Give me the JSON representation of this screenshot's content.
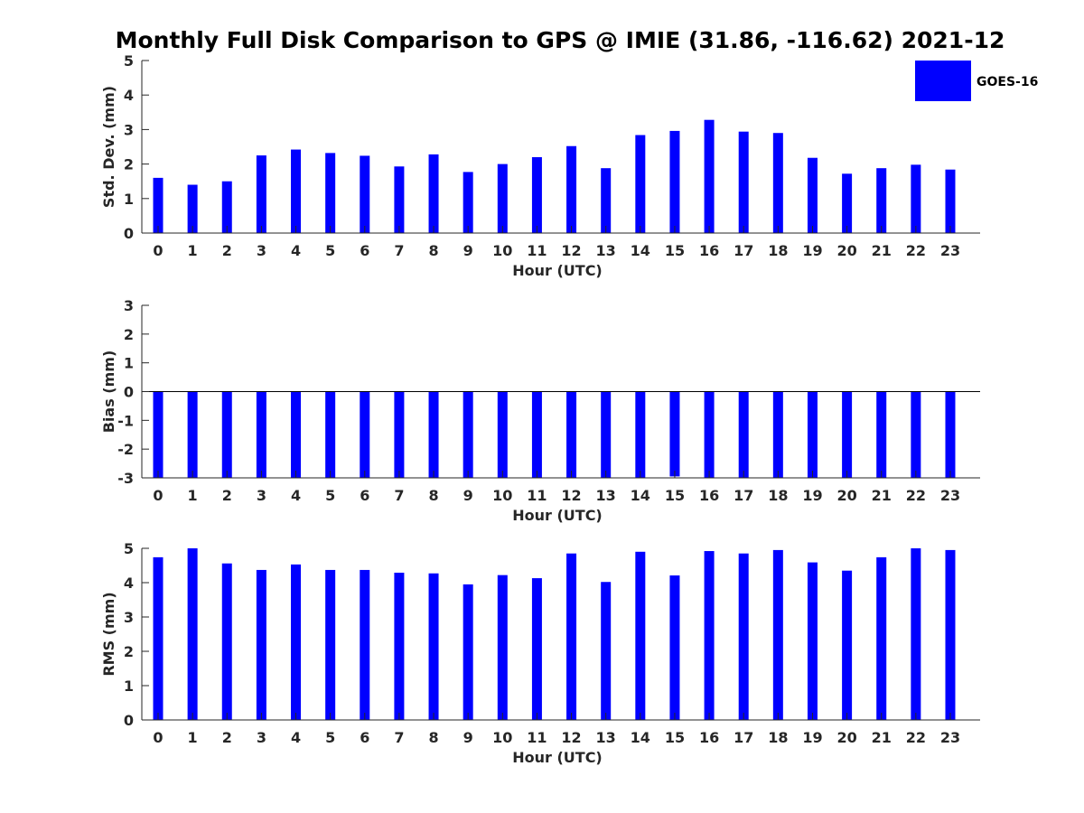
{
  "colors": {
    "bar": "#0000ff",
    "axis": "#262626"
  },
  "chart_data": [
    {
      "type": "bar",
      "title": "Monthly Full Disk Comparison to GPS @ IMIE (31.86, -116.62) 2021-12",
      "xlabel": "Hour (UTC)",
      "ylabel": "Std. Dev. (mm)",
      "ylim": [
        0,
        5
      ],
      "yticks": [
        "0",
        "1",
        "2",
        "3",
        "4",
        "5"
      ],
      "categories": [
        "0",
        "1",
        "2",
        "3",
        "4",
        "5",
        "6",
        "7",
        "8",
        "9",
        "10",
        "11",
        "12",
        "13",
        "14",
        "15",
        "16",
        "17",
        "18",
        "19",
        "20",
        "21",
        "22",
        "23"
      ],
      "series": [
        {
          "name": "GOES-16",
          "values": [
            1.6,
            1.4,
            1.5,
            2.25,
            2.42,
            2.32,
            2.24,
            1.93,
            2.28,
            1.77,
            2.0,
            2.2,
            2.52,
            1.88,
            2.84,
            2.96,
            3.28,
            2.94,
            2.9,
            2.18,
            1.72,
            1.88,
            1.98,
            1.84
          ]
        }
      ],
      "legend": {
        "position": "top-right",
        "entries": [
          "GOES-16"
        ]
      },
      "grid": false
    },
    {
      "type": "bar",
      "xlabel": "Hour (UTC)",
      "ylabel": "Bias (mm)",
      "ylim": [
        -3,
        3
      ],
      "yticks": [
        "-3",
        "-2",
        "-1",
        "0",
        "1",
        "2",
        "3"
      ],
      "categories": [
        "0",
        "1",
        "2",
        "3",
        "4",
        "5",
        "6",
        "7",
        "8",
        "9",
        "10",
        "11",
        "12",
        "13",
        "14",
        "15",
        "16",
        "17",
        "18",
        "19",
        "20",
        "21",
        "22",
        "23"
      ],
      "series": [
        {
          "name": "GOES-16",
          "values": [
            -3.0,
            -3.0,
            -3.0,
            -3.0,
            -3.0,
            -3.0,
            -3.0,
            -3.0,
            -3.0,
            -3.0,
            -3.0,
            -3.0,
            -3.0,
            -3.0,
            -3.0,
            -2.95,
            -3.0,
            -3.0,
            -3.0,
            -3.0,
            -3.0,
            -3.0,
            -3.0,
            -3.0
          ]
        }
      ],
      "grid": false
    },
    {
      "type": "bar",
      "xlabel": "Hour (UTC)",
      "ylabel": "RMS (mm)",
      "ylim": [
        0,
        5
      ],
      "yticks": [
        "0",
        "1",
        "2",
        "3",
        "4",
        "5"
      ],
      "categories": [
        "0",
        "1",
        "2",
        "3",
        "4",
        "5",
        "6",
        "7",
        "8",
        "9",
        "10",
        "11",
        "12",
        "13",
        "14",
        "15",
        "16",
        "17",
        "18",
        "19",
        "20",
        "21",
        "22",
        "23"
      ],
      "series": [
        {
          "name": "GOES-16",
          "values": [
            4.74,
            5.0,
            4.56,
            4.37,
            4.53,
            4.37,
            4.37,
            4.29,
            4.27,
            3.95,
            4.22,
            4.13,
            4.85,
            4.02,
            4.9,
            4.21,
            4.92,
            4.85,
            4.95,
            4.59,
            4.35,
            4.74,
            5.0,
            4.95
          ]
        }
      ],
      "grid": false
    }
  ]
}
